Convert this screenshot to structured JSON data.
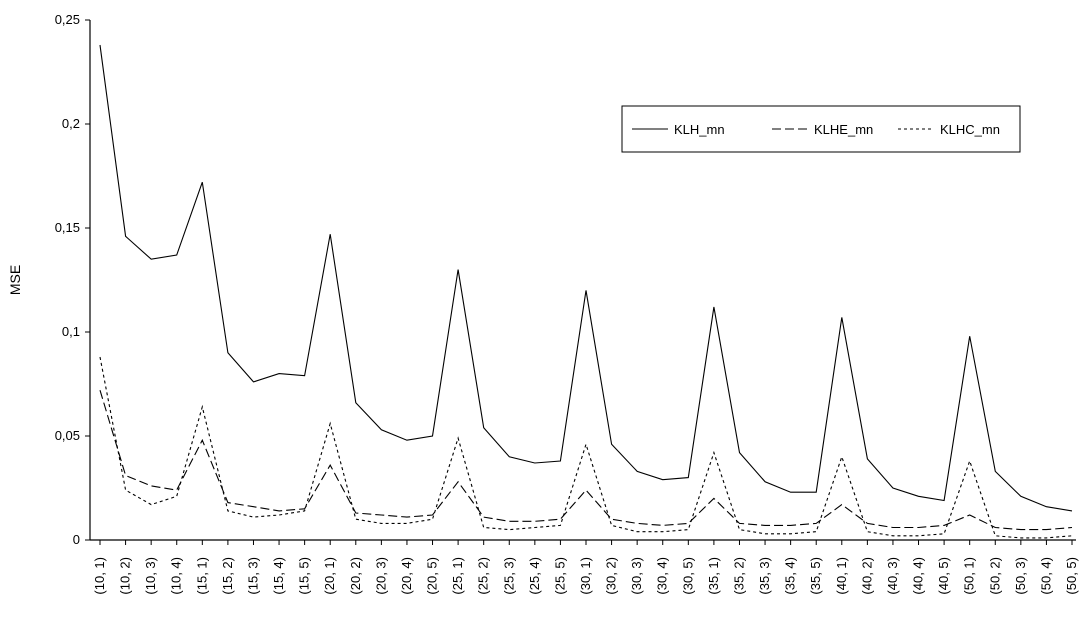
{
  "chart_data": {
    "type": "line",
    "title": "",
    "xlabel": "",
    "ylabel": "MSE",
    "ylim": [
      0,
      0.25
    ],
    "yticks": [
      "0",
      "0,05",
      "0,1",
      "0,15",
      "0,2",
      "0,25"
    ],
    "grid": false,
    "legend_position": "top-right",
    "categories": [
      "(10, 1)",
      "(10, 2)",
      "(10, 3)",
      "(10, 4)",
      "(15, 1)",
      "(15, 2)",
      "(15, 3)",
      "(15, 4)",
      "(15, 5)",
      "(20, 1)",
      "(20, 2)",
      "(20, 3)",
      "(20, 4)",
      "(20, 5)",
      "(25, 1)",
      "(25, 2)",
      "(25, 3)",
      "(25, 4)",
      "(25, 5)",
      "(30, 1)",
      "(30, 2)",
      "(30, 3)",
      "(30, 4)",
      "(30, 5)",
      "(35, 1)",
      "(35, 2)",
      "(35, 3)",
      "(35, 4)",
      "(35, 5)",
      "(40, 1)",
      "(40, 2)",
      "(40, 3)",
      "(40, 4)",
      "(40, 5)",
      "(50, 1)",
      "(50, 2)",
      "(50, 3)",
      "(50, 4)",
      "(50, 5)"
    ],
    "series": [
      {
        "name": "KLH_mn",
        "dash": "solid",
        "values": [
          0.238,
          0.146,
          0.135,
          0.137,
          0.172,
          0.09,
          0.076,
          0.08,
          0.079,
          0.147,
          0.066,
          0.053,
          0.048,
          0.05,
          0.13,
          0.054,
          0.04,
          0.037,
          0.038,
          0.12,
          0.046,
          0.033,
          0.029,
          0.03,
          0.112,
          0.042,
          0.028,
          0.023,
          0.023,
          0.107,
          0.039,
          0.025,
          0.021,
          0.019,
          0.098,
          0.033,
          0.021,
          0.016,
          0.014
        ]
      },
      {
        "name": "KLHE_mn",
        "dash": "dash",
        "values": [
          0.072,
          0.031,
          0.026,
          0.024,
          0.048,
          0.018,
          0.016,
          0.014,
          0.015,
          0.036,
          0.013,
          0.012,
          0.011,
          0.012,
          0.028,
          0.011,
          0.009,
          0.009,
          0.01,
          0.024,
          0.01,
          0.008,
          0.007,
          0.008,
          0.02,
          0.008,
          0.007,
          0.007,
          0.008,
          0.017,
          0.008,
          0.006,
          0.006,
          0.007,
          0.012,
          0.006,
          0.005,
          0.005,
          0.006
        ]
      },
      {
        "name": "KLHC_mn",
        "dash": "dot",
        "values": [
          0.088,
          0.024,
          0.017,
          0.021,
          0.064,
          0.014,
          0.011,
          0.012,
          0.014,
          0.056,
          0.01,
          0.008,
          0.008,
          0.01,
          0.049,
          0.006,
          0.005,
          0.006,
          0.007,
          0.046,
          0.007,
          0.004,
          0.004,
          0.005,
          0.042,
          0.005,
          0.003,
          0.003,
          0.004,
          0.04,
          0.004,
          0.002,
          0.002,
          0.003,
          0.038,
          0.002,
          0.001,
          0.001,
          0.002
        ]
      }
    ]
  }
}
